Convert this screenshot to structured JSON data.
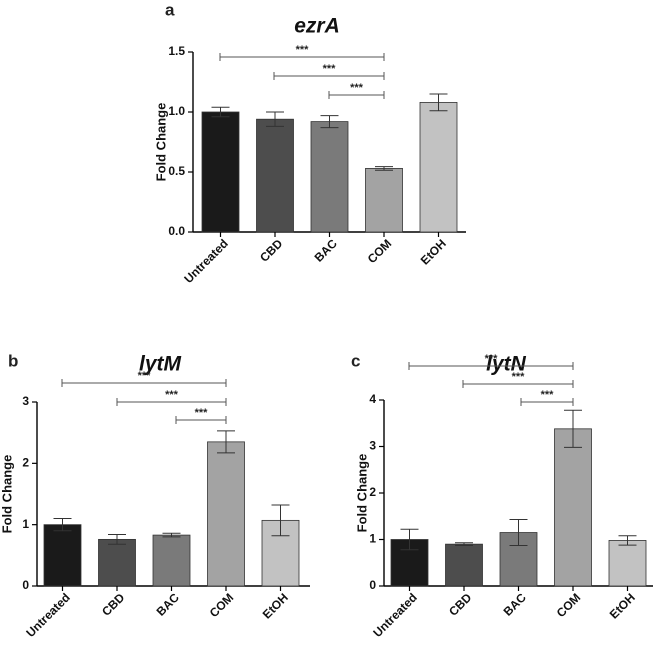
{
  "chart_data": [
    {
      "panel": "a",
      "type": "bar",
      "title": "ezrA",
      "ylabel": "Fold Change",
      "xlabel": "",
      "ylim": [
        0,
        1.5
      ],
      "yticks": [
        "0.0",
        "0.5",
        "1.0",
        "1.5"
      ],
      "categories": [
        "Untreated",
        "CBD",
        "BAC",
        "COM",
        "EtOH"
      ],
      "values": [
        1.0,
        0.94,
        0.92,
        0.53,
        1.08
      ],
      "errors": [
        0.04,
        0.06,
        0.05,
        0.015,
        0.07
      ],
      "colors": [
        "#1a1a1a",
        "#4d4d4d",
        "#7a7a7a",
        "#a3a3a3",
        "#c2c2c2"
      ],
      "significance": [
        {
          "from": "Untreated",
          "to": "COM",
          "label": "***"
        },
        {
          "from": "CBD",
          "to": "COM",
          "label": "***"
        },
        {
          "from": "BAC",
          "to": "COM",
          "label": "***"
        }
      ]
    },
    {
      "panel": "b",
      "type": "bar",
      "title": "lytM",
      "ylabel": "Fold Change",
      "xlabel": "",
      "ylim": [
        0,
        3
      ],
      "yticks": [
        "0",
        "1",
        "2",
        "3"
      ],
      "categories": [
        "Untreated",
        "CBD",
        "BAC",
        "COM",
        "EtOH"
      ],
      "values": [
        1.0,
        0.76,
        0.83,
        2.35,
        1.07
      ],
      "errors": [
        0.1,
        0.08,
        0.03,
        0.18,
        0.25
      ],
      "colors": [
        "#1a1a1a",
        "#4d4d4d",
        "#7a7a7a",
        "#a3a3a3",
        "#c2c2c2"
      ],
      "significance": [
        {
          "from": "Untreated",
          "to": "COM",
          "label": "***"
        },
        {
          "from": "CBD",
          "to": "COM",
          "label": "***"
        },
        {
          "from": "BAC",
          "to": "COM",
          "label": "***"
        }
      ]
    },
    {
      "panel": "c",
      "type": "bar",
      "title": "lytN",
      "ylabel": "Fold Change",
      "xlabel": "",
      "ylim": [
        0,
        4
      ],
      "yticks": [
        "0",
        "1",
        "2",
        "3",
        "4"
      ],
      "categories": [
        "Untreated",
        "CBD",
        "BAC",
        "COM",
        "EtOH"
      ],
      "values": [
        1.0,
        0.9,
        1.15,
        3.38,
        0.98
      ],
      "errors": [
        0.22,
        0.03,
        0.28,
        0.4,
        0.1
      ],
      "colors": [
        "#1a1a1a",
        "#4d4d4d",
        "#7a7a7a",
        "#a3a3a3",
        "#c2c2c2"
      ],
      "significance": [
        {
          "from": "Untreated",
          "to": "COM",
          "label": "***"
        },
        {
          "from": "CBD",
          "to": "COM",
          "label": "***"
        },
        {
          "from": "BAC",
          "to": "COM",
          "label": "***"
        }
      ]
    }
  ]
}
